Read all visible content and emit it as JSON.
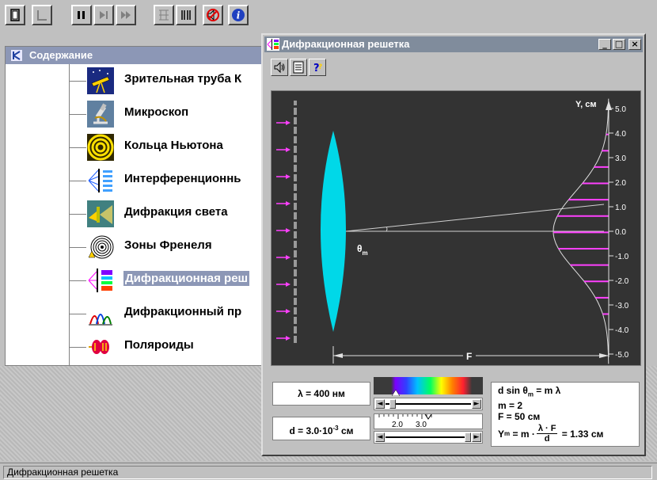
{
  "status_bar": {
    "text": "Дифракционная решетка"
  },
  "contents": {
    "title": "Содержание",
    "items": [
      {
        "label": "Зрительная труба К",
        "icon": "telescope-icon"
      },
      {
        "label": "Микроскоп",
        "icon": "microscope-icon"
      },
      {
        "label": "Кольца Ньютона",
        "icon": "newton-rings-icon"
      },
      {
        "label": "Интерференционнь",
        "icon": "interference-icon"
      },
      {
        "label": "Дифракция света",
        "icon": "light-diffraction-icon"
      },
      {
        "label": "Зоны Френеля",
        "icon": "fresnel-zones-icon"
      },
      {
        "label": "Дифракционная реш",
        "icon": "diffraction-grating-icon",
        "selected": true
      },
      {
        "label": "Дифракционный пр",
        "icon": "diffraction-spectrum-icon"
      },
      {
        "label": "Поляроиды",
        "icon": "polaroids-icon"
      }
    ]
  },
  "window": {
    "title": "Дифракционная решетка",
    "buttons": {
      "minimize": "_",
      "maximize": "□",
      "close": "×"
    }
  },
  "plot": {
    "axis_label": "Y, см",
    "y_ticks": [
      "5.0",
      "4.0",
      "3.0",
      "2.0",
      "1.0",
      "0.0",
      "-1.0",
      "-2.0",
      "-3.0",
      "-4.0",
      "-5.0"
    ],
    "angle_label": "θ",
    "angle_sub": "m",
    "focal_label": "F"
  },
  "controls": {
    "lambda_text": "λ = 400 нм",
    "d_prefix": "d = 3.0·10",
    "d_exp": "-3",
    "d_unit": " см",
    "lambda_slider_fraction": 0.05,
    "d_scale_labels": [
      "2.0",
      "3.0"
    ],
    "d_slider_fraction": 1.0
  },
  "formula": {
    "line1": "d sin θ",
    "line1_sub": "m",
    "line1_rest": " = m λ",
    "m_text": "m  = 2",
    "f_text": "F   = 50 см",
    "y_prefix": "Y",
    "y_sub": "m",
    "y_eq": " = m ·",
    "frac_num": "λ · F",
    "frac_den": "d",
    "y_result": " = 1.33 см"
  },
  "colors": {
    "lens": "#00d8e8",
    "arrows": "#ff40ff",
    "canvas_bg": "#333333",
    "title_bar": "#808c9c"
  }
}
